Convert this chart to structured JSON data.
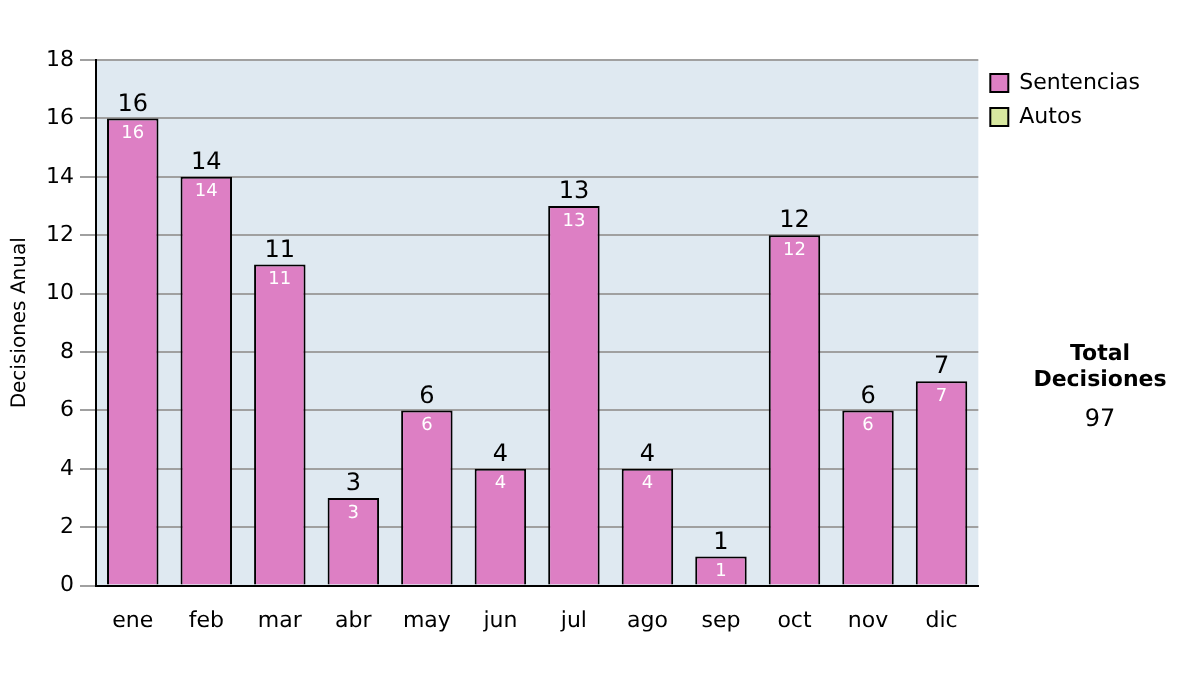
{
  "chart_data": {
    "type": "bar",
    "ylabel": "Decisiones Anual",
    "categories": [
      "ene",
      "feb",
      "mar",
      "abr",
      "may",
      "jun",
      "jul",
      "ago",
      "sep",
      "oct",
      "nov",
      "dic"
    ],
    "series": [
      {
        "name": "Sentencias",
        "color": "#dd7fc4",
        "values": [
          16,
          14,
          11,
          3,
          6,
          4,
          13,
          4,
          1,
          12,
          6,
          7
        ]
      },
      {
        "name": "Autos",
        "color": "#d8e8a0",
        "values": [
          null,
          null,
          null,
          null,
          null,
          null,
          null,
          null,
          null,
          null,
          null,
          null
        ]
      }
    ],
    "stacked": true,
    "totals": [
      "16",
      "14",
      "11",
      "3",
      "6",
      "4",
      "13",
      "4",
      "1",
      "12",
      "6",
      "7"
    ],
    "data_labels": true,
    "ylim": [
      0,
      18
    ],
    "yticks": [
      0,
      2,
      4,
      6,
      8,
      10,
      12,
      14,
      16,
      18
    ],
    "grid": "y",
    "legend": "right",
    "annotations": [
      "Total Decisiones",
      "97"
    ]
  }
}
